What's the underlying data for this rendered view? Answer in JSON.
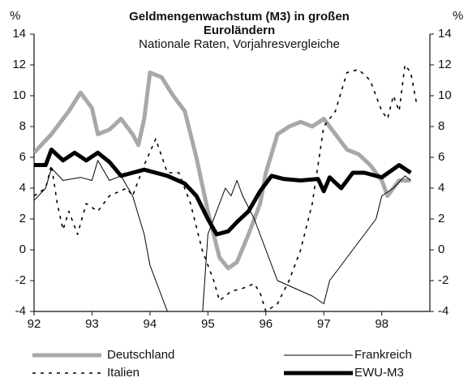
{
  "chart_data": {
    "type": "line",
    "title": "Geldmengenwachstum (M3) in großen Euroländern",
    "subtitle": "Nationale Raten, Vorjahresvergleiche",
    "y_unit": "%",
    "xlim": [
      92,
      98.83
    ],
    "xticks": [
      92,
      93,
      94,
      95,
      96,
      97,
      98
    ],
    "ylim": [
      -4,
      14
    ],
    "yticks": [
      -4,
      -2,
      0,
      2,
      4,
      6,
      8,
      10,
      12,
      14
    ],
    "series": [
      {
        "name": "Deutschland",
        "color": "#a8a8a8",
        "width": 5,
        "style": "solid",
        "x": [
          92,
          92.3,
          92.6,
          92.8,
          93.0,
          93.1,
          93.3,
          93.5,
          93.7,
          93.8,
          93.9,
          94.0,
          94.2,
          94.4,
          94.6,
          94.8,
          95.0,
          95.2,
          95.35,
          95.5,
          95.7,
          95.9,
          96.0,
          96.2,
          96.4,
          96.6,
          96.8,
          97.0,
          97.2,
          97.4,
          97.6,
          97.8,
          98.0,
          98.1,
          98.3,
          98.5
        ],
        "values": [
          6.3,
          7.5,
          9,
          10.2,
          9.2,
          7.5,
          7.8,
          8.5,
          7.5,
          6.8,
          8.5,
          11.5,
          11.2,
          10,
          9,
          6,
          2.5,
          -0.5,
          -1.2,
          -0.8,
          1,
          3,
          5,
          7.5,
          8,
          8.3,
          8,
          8.5,
          7.5,
          6.5,
          6.2,
          5.5,
          4.5,
          3.5,
          4.5,
          4.5
        ]
      },
      {
        "name": "Frankreich",
        "color": "#000000",
        "width": 1,
        "style": "solid",
        "x": [
          92,
          92.2,
          92.3,
          92.5,
          92.8,
          93.0,
          93.1,
          93.3,
          93.5,
          93.7,
          93.9,
          94.0,
          94.2,
          94.35,
          94.9,
          95.0,
          95.2,
          95.3,
          95.4,
          95.5,
          95.6,
          95.8,
          96.0,
          96.2,
          96.5,
          96.8,
          97.0,
          97.1,
          97.3,
          97.6,
          97.9,
          98.0,
          98.2,
          98.4,
          98.5
        ],
        "values": [
          3.2,
          4,
          5.3,
          4.5,
          4.7,
          4.5,
          5.8,
          4.5,
          4.8,
          3.5,
          1,
          -1,
          -3,
          -4.5,
          -4.5,
          1,
          3,
          4,
          3.5,
          4.5,
          3.5,
          2,
          0,
          -2,
          -2.5,
          -3,
          -3.5,
          -2,
          -1,
          0.5,
          2,
          3.5,
          4,
          4.8,
          4.5
        ]
      },
      {
        "name": "Italien",
        "color": "#000000",
        "width": 1.6,
        "style": "dashed",
        "x": [
          92,
          92.2,
          92.3,
          92.4,
          92.5,
          92.6,
          92.75,
          92.9,
          93.1,
          93.3,
          93.6,
          93.7,
          93.9,
          94.1,
          94.3,
          94.5,
          94.7,
          94.9,
          95.1,
          95.2,
          95.4,
          95.6,
          95.8,
          95.9,
          96.0,
          96.2,
          96.4,
          96.6,
          96.8,
          97.0,
          97.2,
          97.4,
          97.6,
          97.8,
          98.0,
          98.1,
          98.2,
          98.3,
          98.4,
          98.5,
          98.6
        ],
        "values": [
          3.5,
          4,
          5.5,
          3,
          1.3,
          2.5,
          1,
          3,
          2.5,
          3.5,
          4,
          3.5,
          5.5,
          7.2,
          5,
          5,
          3,
          0,
          -2,
          -3.3,
          -2.7,
          -2.5,
          -2.2,
          -2.8,
          -4,
          -3.5,
          -2,
          0,
          3,
          8,
          9,
          11.5,
          11.7,
          11,
          9,
          8.5,
          10,
          9,
          12,
          11.5,
          9.5
        ]
      },
      {
        "name": "EWU-M3",
        "color": "#000000",
        "width": 5,
        "style": "solid",
        "x": [
          92,
          92.2,
          92.3,
          92.5,
          92.7,
          92.9,
          93.1,
          93.3,
          93.5,
          93.7,
          93.9,
          94.1,
          94.3,
          94.6,
          94.8,
          95.0,
          95.15,
          95.35,
          95.5,
          95.7,
          95.9,
          96.1,
          96.3,
          96.6,
          96.9,
          97.0,
          97.1,
          97.3,
          97.5,
          97.7,
          98.0,
          98.3,
          98.5
        ],
        "values": [
          5.5,
          5.5,
          6.5,
          5.8,
          6.3,
          5.8,
          6.3,
          5.7,
          4.8,
          5,
          5.2,
          5,
          4.8,
          4.3,
          3.5,
          2,
          1,
          1.2,
          1.8,
          2.5,
          3.8,
          4.8,
          4.6,
          4.5,
          4.6,
          3.8,
          4.7,
          4,
          5,
          5,
          4.7,
          5.5,
          5
        ]
      }
    ]
  }
}
